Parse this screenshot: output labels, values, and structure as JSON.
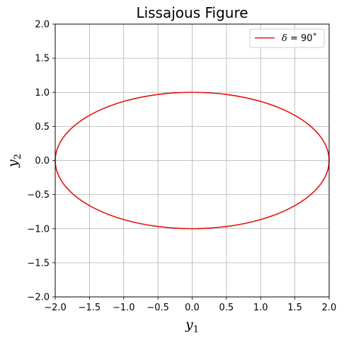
{
  "chart_data": {
    "type": "line",
    "title": "Lissajous Figure",
    "xlabel": {
      "base": "y",
      "sub": "1"
    },
    "ylabel": {
      "base": "y",
      "sub": "2"
    },
    "xlim": [
      -2.0,
      2.0
    ],
    "ylim": [
      -2.0,
      2.0
    ],
    "xticks": [
      -2.0,
      -1.5,
      -1.0,
      -0.5,
      0.0,
      0.5,
      1.0,
      1.5,
      2.0
    ],
    "yticks": [
      -2.0,
      -1.5,
      -1.0,
      -0.5,
      0.0,
      0.5,
      1.0,
      1.5,
      2.0
    ],
    "xtick_labels": [
      "−2.0",
      "−1.5",
      "−1.0",
      "−0.5",
      "0.0",
      "0.5",
      "1.0",
      "1.5",
      "2.0"
    ],
    "ytick_labels": [
      "−2.0",
      "−1.5",
      "−1.0",
      "−0.5",
      "0.0",
      "0.5",
      "1.0",
      "1.5",
      "2.0"
    ],
    "grid": true,
    "legend_position": "top-right",
    "series": [
      {
        "name": "δ = 90˚",
        "legend_symbol": "δ",
        "legend_text": " = 90˚",
        "color": "#e8120c",
        "x": [
          2.0,
          1.932,
          1.732,
          1.414,
          1.0,
          0.518,
          0.0,
          -0.518,
          -1.0,
          -1.414,
          -1.732,
          -1.932,
          -2.0,
          -1.932,
          -1.732,
          -1.414,
          -1.0,
          -0.518,
          0.0,
          0.518,
          1.0,
          1.414,
          1.732,
          1.932,
          2.0
        ],
        "y": [
          0.0,
          0.259,
          0.5,
          0.707,
          0.866,
          0.966,
          1.0,
          0.966,
          0.866,
          0.707,
          0.5,
          0.259,
          0.0,
          -0.259,
          -0.5,
          -0.707,
          -0.866,
          -0.966,
          -1.0,
          -0.966,
          -0.866,
          -0.707,
          -0.5,
          -0.259,
          0.0
        ]
      }
    ]
  }
}
